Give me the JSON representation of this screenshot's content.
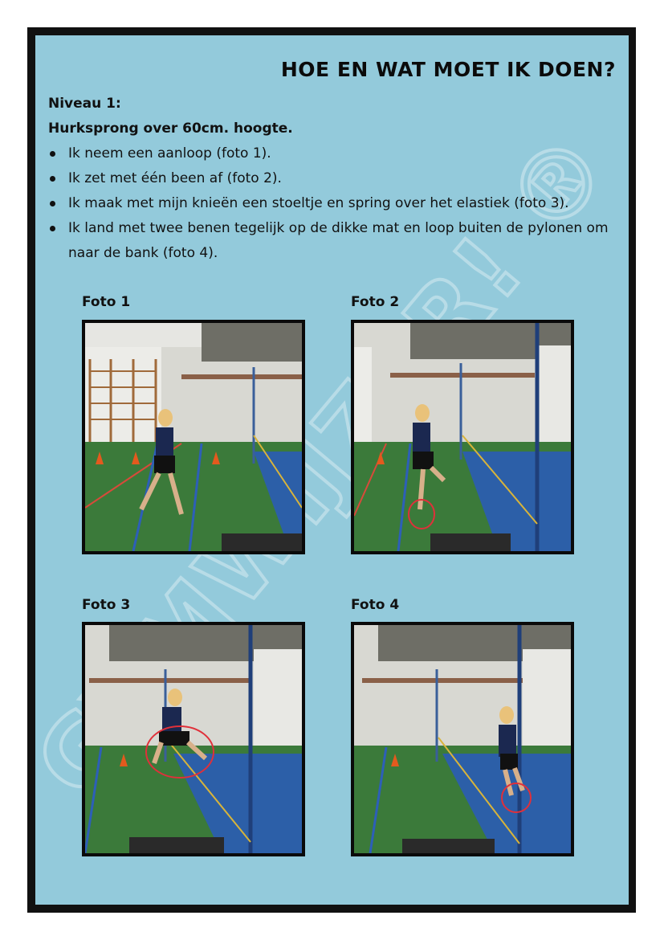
{
  "title": "HOE EN WAT MOET IK DOEN?",
  "level": "Niveau 1:",
  "subtitle": "Hurksprong over 60cm. hoogte.",
  "steps": [
    "Ik neem een aanloop (foto 1).",
    "Ik zet met één been af (foto 2).",
    "Ik maak met mijn knieën een stoeltje en spring over het elastiek (foto 3).",
    "Ik land met twee benen tegelijk op de dikke mat en loop buiten de pylonen om naar de bank (foto 4)."
  ],
  "photos": [
    {
      "caption": "Foto 1",
      "icon": "gym-photo-run-up"
    },
    {
      "caption": "Foto 2",
      "icon": "gym-photo-take-off"
    },
    {
      "caption": "Foto 3",
      "icon": "gym-photo-jump"
    },
    {
      "caption": "Foto 4",
      "icon": "gym-photo-landing"
    }
  ],
  "watermark": "GYMWIJZER! ®",
  "colors": {
    "background": "#93cadb",
    "frame": "#111111",
    "highlight_circle": "#e0303a"
  }
}
